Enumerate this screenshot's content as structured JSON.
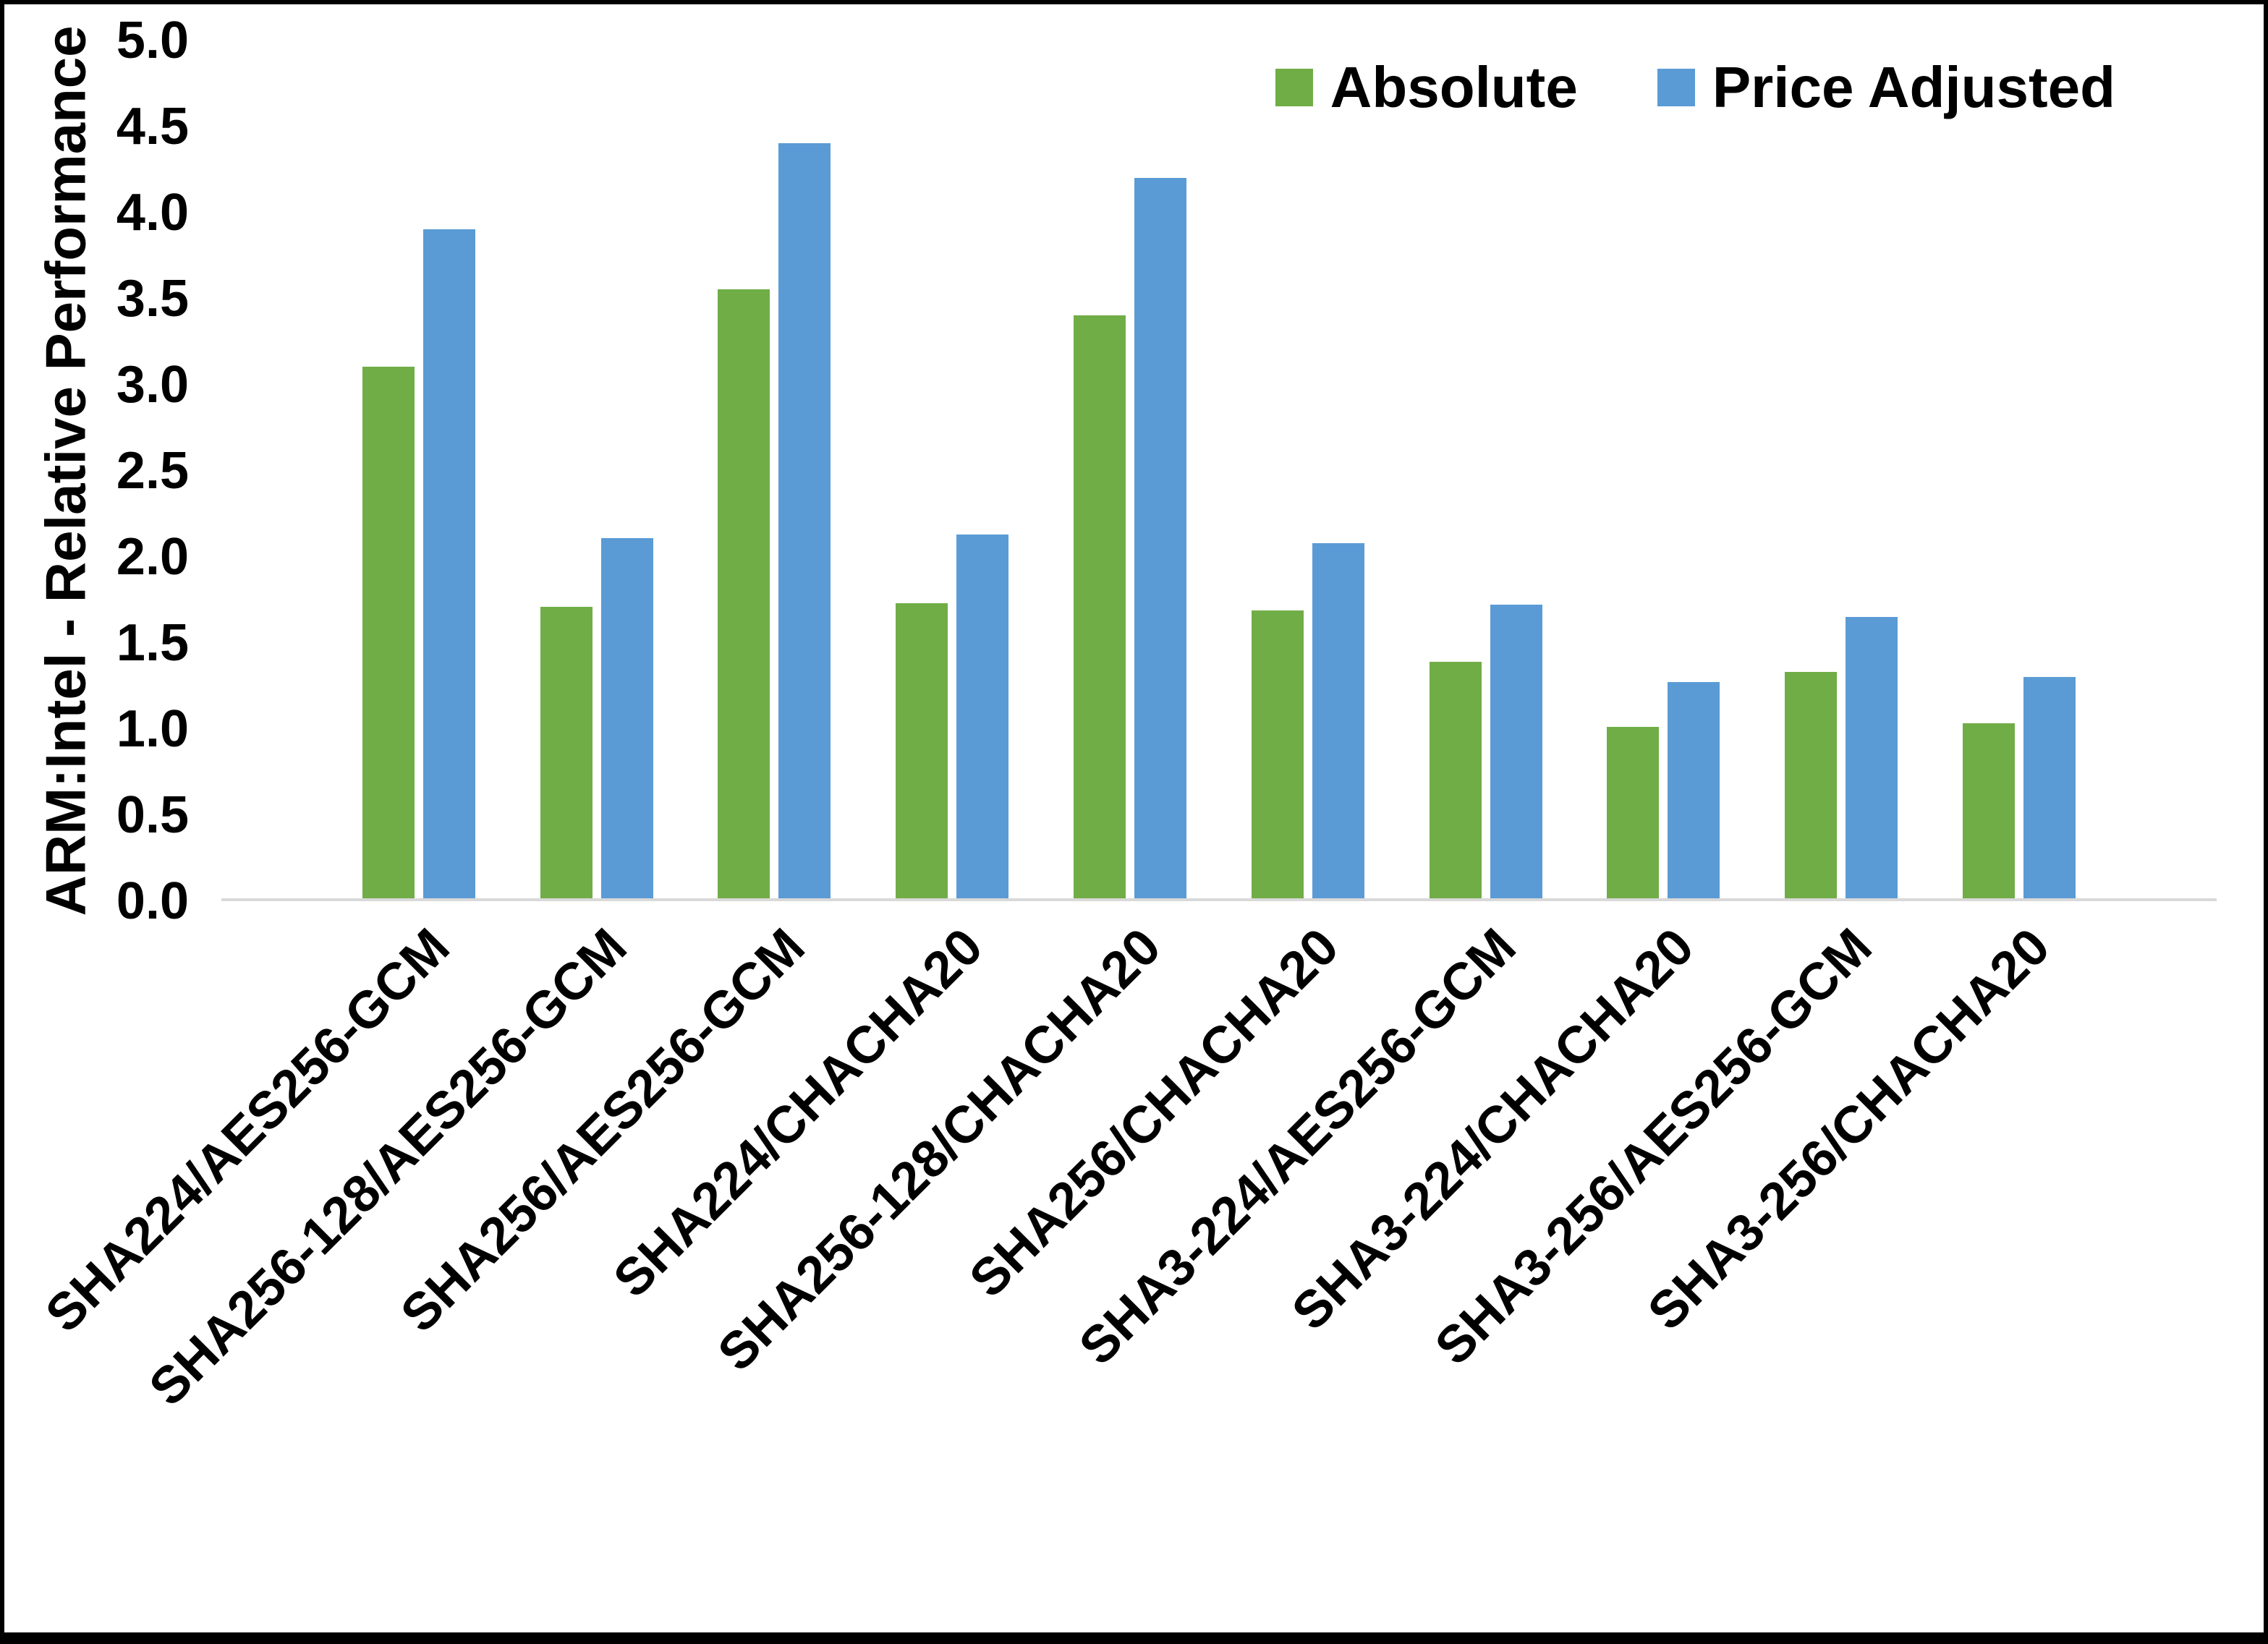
{
  "figure": {
    "background": "#ffffff",
    "border_color": "#000000",
    "text_color": "#000000"
  },
  "chart_data": {
    "type": "bar",
    "title": "",
    "xlabel": "",
    "ylabel": "ARM:Intel - Relative Performance",
    "ylim": [
      0,
      5
    ],
    "ytick_step": 0.5,
    "grid": false,
    "legend_position": "top-right",
    "axis_line_color": "#d9d9d9",
    "categories": [
      "SHA224/AES256-GCM",
      "SHA256-128/AES256-GCM",
      "SHA256/AES256-GCM",
      "SHA224/CHACHA20",
      "SHA256-128/CHACHA20",
      "SHA256/CHACHA20",
      "SHA3-224/AES256-GCM",
      "SHA3-224/CHACHA20",
      "SHA3-256/AES256-GCM",
      "SHA3-256/CHACHA20"
    ],
    "series": [
      {
        "name": "Absolute",
        "color": "#70AD47",
        "values": [
          3.1,
          1.7,
          3.55,
          1.72,
          3.4,
          1.68,
          1.38,
          1.0,
          1.32,
          1.02
        ]
      },
      {
        "name": "Price Adjusted",
        "color": "#5B9BD5",
        "values": [
          3.9,
          2.1,
          4.4,
          2.12,
          4.2,
          2.07,
          1.71,
          1.26,
          1.64,
          1.29
        ]
      }
    ]
  }
}
